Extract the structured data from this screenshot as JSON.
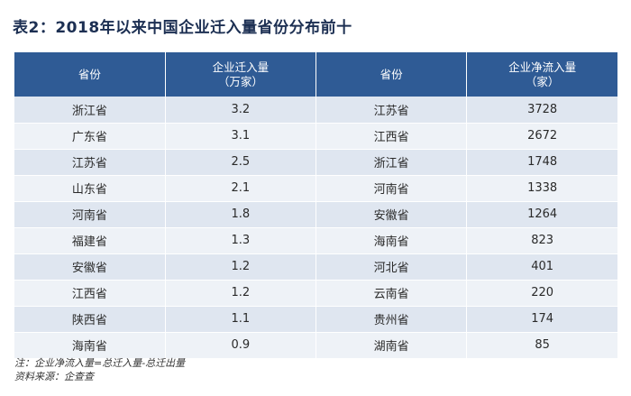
{
  "title": "表2：2018年以来中国企业迁入量省份分布前十",
  "headers": {
    "province_a": "省份",
    "moved_in_line1": "企业迁入量",
    "moved_in_line2": "（万家）",
    "province_b": "省份",
    "net_in_line1": "企业净流入量",
    "net_in_line2": "（家）"
  },
  "rows": [
    [
      "浙江省",
      "3.2",
      "江苏省",
      "3728"
    ],
    [
      "广东省",
      "3.1",
      "江西省",
      "2672"
    ],
    [
      "江苏省",
      "2.5",
      "浙江省",
      "1748"
    ],
    [
      "山东省",
      "2.1",
      "河南省",
      "1338"
    ],
    [
      "河南省",
      "1.8",
      "安徽省",
      "1264"
    ],
    [
      "福建省",
      "1.3",
      "海南省",
      "823"
    ],
    [
      "安徽省",
      "1.2",
      "河北省",
      "401"
    ],
    [
      "江西省",
      "1.2",
      "云南省",
      "220"
    ],
    [
      "陕西省",
      "1.1",
      "贵州省",
      "174"
    ],
    [
      "海南省",
      "0.9",
      "湖南省",
      "85"
    ]
  ],
  "notes": {
    "note": "注：企业净流入量=总迁入量-总迁出量",
    "source": "资料来源：企查查"
  },
  "colors": {
    "header_bg": "#2f5b95",
    "row_dark": "#dfe6f0",
    "row_light": "#eef2f7",
    "title": "#1c2f52"
  }
}
